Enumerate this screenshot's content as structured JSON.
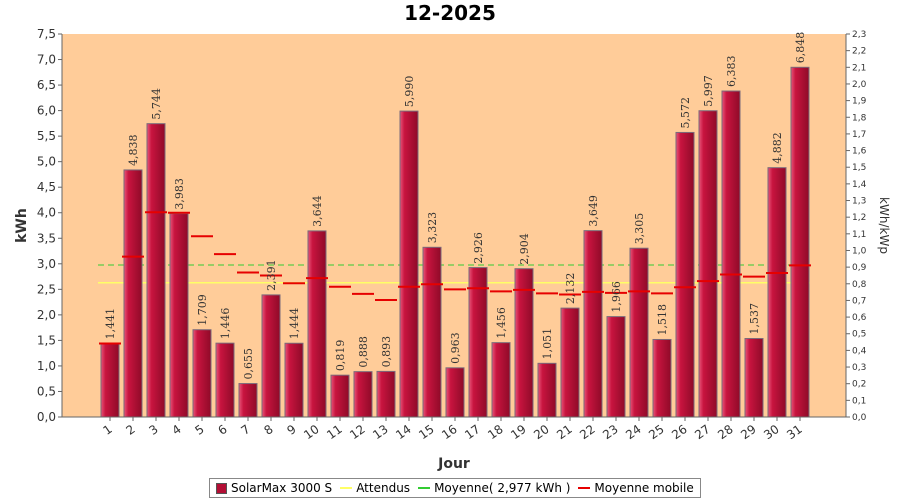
{
  "chart_data": {
    "type": "bar",
    "title": "12-2025",
    "xlabel": "Jour",
    "ylabel": "kWh",
    "y2label": "kWh/kWp",
    "ylim": [
      0,
      7.5
    ],
    "y2lim": [
      0,
      2.3
    ],
    "yticks": [
      "0,0",
      "0,5",
      "1,0",
      "1,5",
      "2,0",
      "2,5",
      "3,0",
      "3,5",
      "4,0",
      "4,5",
      "5,0",
      "5,5",
      "6,0",
      "6,5",
      "7,0",
      "7,5"
    ],
    "y2ticks": [
      "0,0",
      "0,1",
      "0,2",
      "0,3",
      "0,4",
      "0,5",
      "0,6",
      "0,7",
      "0,8",
      "0,9",
      "1,0",
      "1,1",
      "1,2",
      "1,3",
      "1,4",
      "1,5",
      "1,6",
      "1,7",
      "1,8",
      "1,9",
      "2,0",
      "2,1",
      "2,2",
      "2,3"
    ],
    "categories": [
      "1",
      "2",
      "3",
      "4",
      "5",
      "6",
      "7",
      "8",
      "9",
      "10",
      "11",
      "12",
      "13",
      "14",
      "15",
      "16",
      "17",
      "18",
      "19",
      "20",
      "21",
      "22",
      "23",
      "24",
      "25",
      "26",
      "27",
      "28",
      "29",
      "30",
      "31"
    ],
    "series": [
      {
        "name": "SolarMax 3000 S",
        "values": [
          1.441,
          4.838,
          5.744,
          3.983,
          1.709,
          1.446,
          0.655,
          2.391,
          1.444,
          3.644,
          0.819,
          0.888,
          0.893,
          5.99,
          3.323,
          0.963,
          2.926,
          1.456,
          2.904,
          1.051,
          2.132,
          3.649,
          1.966,
          3.305,
          1.518,
          5.572,
          5.997,
          6.383,
          1.537,
          4.882,
          6.848
        ],
        "labels": [
          "1,441",
          "4,838",
          "5,744",
          "3,983",
          "1,709",
          "1,446",
          "0,655",
          "2,391",
          "1,444",
          "3,644",
          "0,819",
          "0,888",
          "0,893",
          "5,990",
          "3,323",
          "0,963",
          "2,926",
          "1,456",
          "2,904",
          "1,051",
          "2,132",
          "3,649",
          "1,966",
          "3,305",
          "1,518",
          "5,572",
          "5,997",
          "6,383",
          "1,537",
          "4,882",
          "6,848"
        ],
        "color": "#b30f35"
      },
      {
        "name": "Attendus",
        "value": 2.63,
        "color": "#ffff66"
      },
      {
        "name": "Moyenne( 2,977 kWh )",
        "value": 2.977,
        "color": "#33cc33"
      },
      {
        "name": "Moyenne mobile",
        "values": [
          1.44,
          3.14,
          4.01,
          4.0,
          3.54,
          3.19,
          2.83,
          2.77,
          2.62,
          2.72,
          2.55,
          2.41,
          2.29,
          2.55,
          2.6,
          2.5,
          2.52,
          2.46,
          2.49,
          2.42,
          2.4,
          2.45,
          2.43,
          2.46,
          2.42,
          2.54,
          2.66,
          2.79,
          2.75,
          2.82,
          2.97
        ],
        "color": "#e60000"
      }
    ]
  }
}
